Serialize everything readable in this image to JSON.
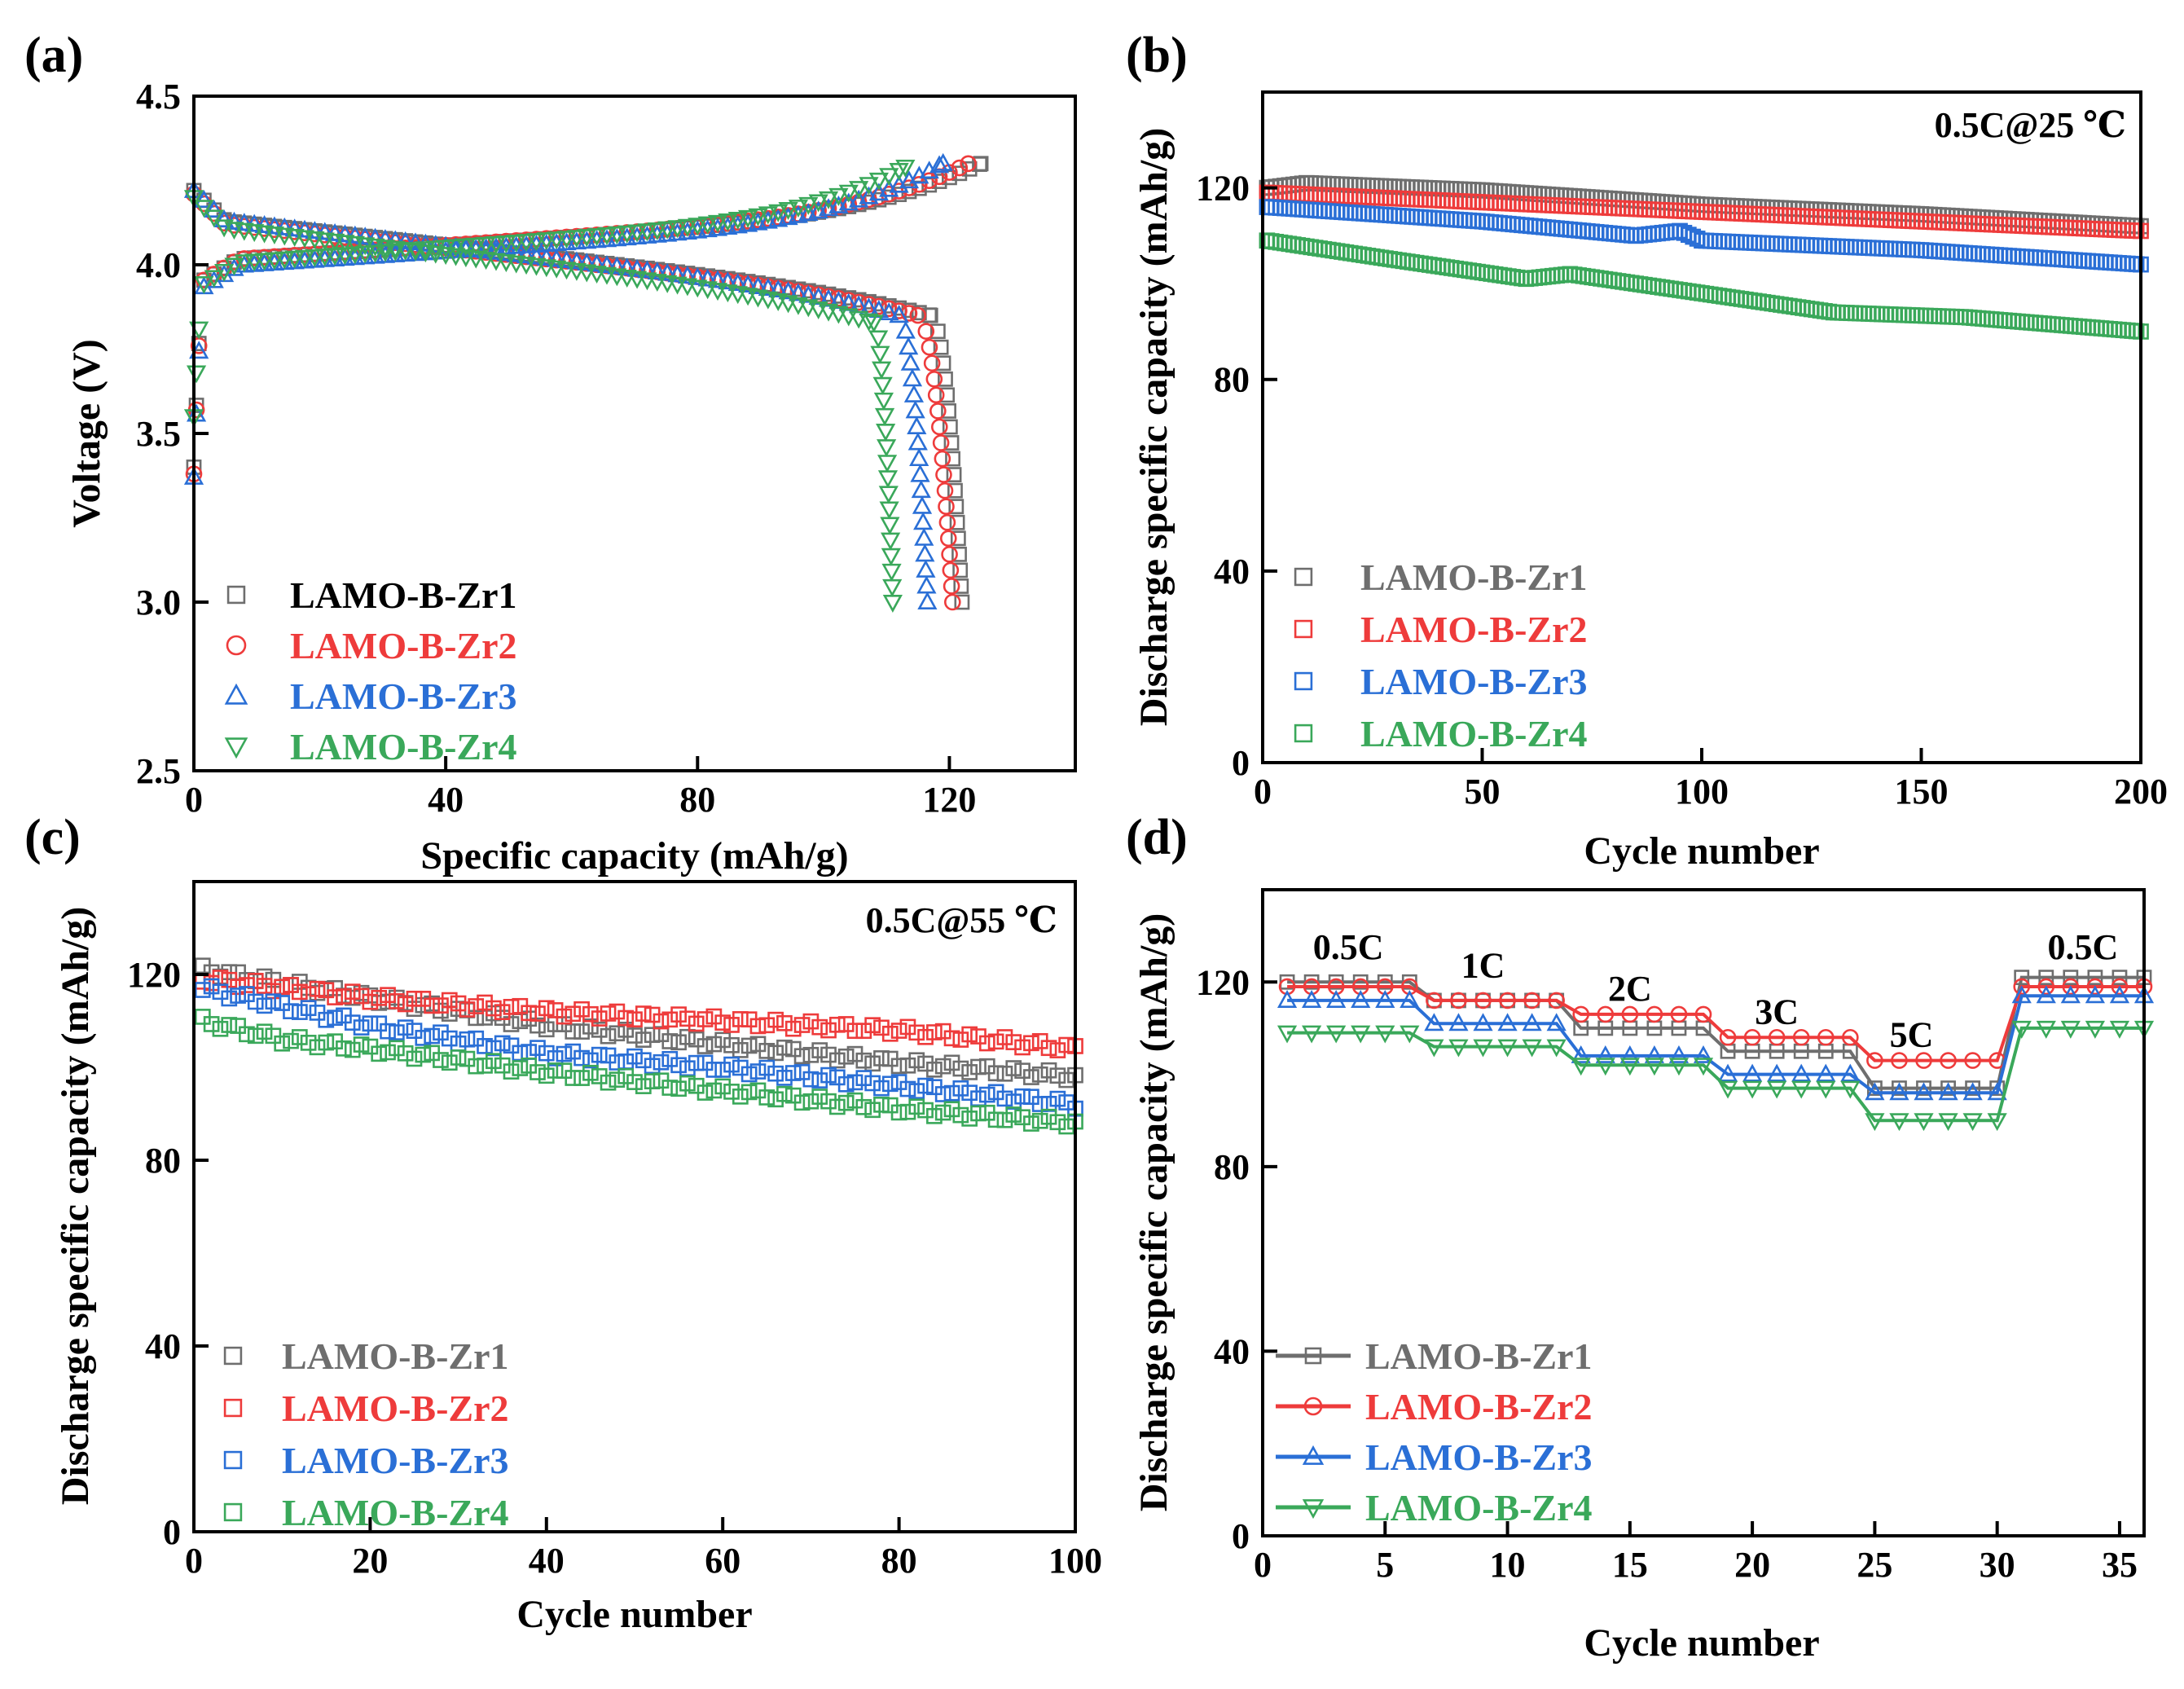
{
  "figure": {
    "colors": {
      "zr1": "#6e6e6e",
      "zr2": "#ee3b3b",
      "zr3": "#2a6fd6",
      "zr4": "#3aa85a",
      "legend_a_zr1": "#000000"
    }
  },
  "chart_data": [
    {
      "id": "a",
      "type": "scatter",
      "panel_label": "(a)",
      "title": "",
      "xlabel": "Specific capacity (mAh/g)",
      "ylabel": "Voltage (V)",
      "xlim": [
        0,
        140
      ],
      "ylim": [
        2.5,
        4.5
      ],
      "xticks": [
        0,
        40,
        80,
        120
      ],
      "yticks": [
        2.5,
        3.0,
        3.5,
        4.0,
        4.5
      ],
      "xtick_labels": [
        "0",
        "40",
        "80",
        "120"
      ],
      "ytick_labels": [
        "2.5",
        "3.0",
        "3.5",
        "4.0",
        "4.5"
      ],
      "legend_position": "bottom-left",
      "series": [
        {
          "name": "LAMO-B-Zr1",
          "marker": "square",
          "charge": {
            "start_v": 3.4,
            "kink_v": 3.95,
            "end_capacity": 125,
            "end_v": 4.3
          },
          "discharge": {
            "start_v": 4.22,
            "knee_capacity": 117,
            "knee_v": 3.85,
            "end_capacity": 122,
            "end_v": 3.0
          }
        },
        {
          "name": "LAMO-B-Zr2",
          "marker": "circle",
          "charge": {
            "start_v": 3.38,
            "kink_v": 3.95,
            "end_capacity": 123,
            "end_v": 4.3
          },
          "discharge": {
            "start_v": 4.21,
            "knee_capacity": 115,
            "knee_v": 3.85,
            "end_capacity": 120.5,
            "end_v": 3.0
          }
        },
        {
          "name": "LAMO-B-Zr3",
          "marker": "triangle-up",
          "charge": {
            "start_v": 3.37,
            "kink_v": 3.93,
            "end_capacity": 119,
            "end_v": 4.3
          },
          "discharge": {
            "start_v": 4.22,
            "knee_capacity": 112,
            "knee_v": 3.85,
            "end_capacity": 116.5,
            "end_v": 3.0
          }
        },
        {
          "name": "LAMO-B-Zr4",
          "marker": "triangle-down",
          "charge": {
            "start_v": 3.55,
            "kink_v": 3.94,
            "end_capacity": 113,
            "end_v": 4.29
          },
          "discharge": {
            "start_v": 4.2,
            "knee_capacity": 108,
            "knee_v": 3.83,
            "end_capacity": 111,
            "end_v": 3.0
          }
        }
      ]
    },
    {
      "id": "b",
      "type": "scatter",
      "panel_label": "(b)",
      "annotation": "0.5C@25 ℃",
      "xlabel": "Cycle number",
      "ylabel": "Discharge specific capacity (mAh/g)",
      "xlim": [
        0,
        200
      ],
      "ylim": [
        0,
        140
      ],
      "xticks": [
        0,
        50,
        100,
        150,
        200
      ],
      "yticks": [
        0,
        40,
        80,
        120
      ],
      "xtick_labels": [
        "0",
        "50",
        "100",
        "150",
        "200"
      ],
      "ytick_labels": [
        "0",
        "40",
        "80",
        "120"
      ],
      "legend_position": "bottom-left",
      "series": [
        {
          "name": "LAMO-B-Zr1",
          "marker": "square",
          "cycles": 200,
          "anchors": [
            [
              1,
              120
            ],
            [
              10,
              121
            ],
            [
              50,
              119.5
            ],
            [
              100,
              116.5
            ],
            [
              150,
              114.5
            ],
            [
              200,
              112
            ]
          ]
        },
        {
          "name": "LAMO-B-Zr2",
          "marker": "square",
          "cycles": 200,
          "anchors": [
            [
              1,
              119
            ],
            [
              50,
              117
            ],
            [
              100,
              115
            ],
            [
              150,
              113
            ],
            [
              200,
              111
            ]
          ]
        },
        {
          "name": "LAMO-B-Zr3",
          "marker": "square",
          "cycles": 200,
          "anchors": [
            [
              1,
              116
            ],
            [
              50,
              113
            ],
            [
              85,
              110
            ],
            [
              95,
              111
            ],
            [
              100,
              109
            ],
            [
              150,
              107
            ],
            [
              200,
              104
            ]
          ]
        },
        {
          "name": "LAMO-B-Zr4",
          "marker": "square",
          "cycles": 200,
          "anchors": [
            [
              1,
              109
            ],
            [
              30,
              105
            ],
            [
              60,
              101
            ],
            [
              70,
              102
            ],
            [
              100,
              98
            ],
            [
              130,
              94
            ],
            [
              160,
              93
            ],
            [
              200,
              90
            ]
          ]
        }
      ]
    },
    {
      "id": "c",
      "type": "scatter",
      "panel_label": "(c)",
      "annotation": "0.5C@55 ℃",
      "xlabel": "Cycle number",
      "ylabel": "Discharge specific capacity (mAh/g)",
      "xlim": [
        0,
        100
      ],
      "ylim": [
        0,
        140
      ],
      "xticks": [
        0,
        20,
        40,
        60,
        80,
        100
      ],
      "yticks": [
        0,
        40,
        80,
        120
      ],
      "xtick_labels": [
        "0",
        "20",
        "40",
        "60",
        "80",
        "100"
      ],
      "ytick_labels": [
        "0",
        "40",
        "80",
        "120"
      ],
      "legend_position": "bottom-left",
      "series": [
        {
          "name": "LAMO-B-Zr1",
          "marker": "square",
          "cycles": 100,
          "anchors": [
            [
              1,
              121
            ],
            [
              20,
              115
            ],
            [
              40,
              109
            ],
            [
              60,
              105
            ],
            [
              80,
              101
            ],
            [
              100,
              98
            ]
          ]
        },
        {
          "name": "LAMO-B-Zr2",
          "marker": "square",
          "cycles": 100,
          "anchors": [
            [
              1,
              119
            ],
            [
              20,
              115
            ],
            [
              40,
              112
            ],
            [
              60,
              110
            ],
            [
              80,
              108
            ],
            [
              100,
              104
            ]
          ]
        },
        {
          "name": "LAMO-B-Zr3",
          "marker": "square",
          "cycles": 100,
          "anchors": [
            [
              1,
              117
            ],
            [
              20,
              109
            ],
            [
              40,
              103
            ],
            [
              60,
              100
            ],
            [
              80,
              96
            ],
            [
              100,
              92
            ]
          ]
        },
        {
          "name": "LAMO-B-Zr4",
          "marker": "square",
          "cycles": 100,
          "anchors": [
            [
              1,
              110
            ],
            [
              10,
              106
            ],
            [
              20,
              104
            ],
            [
              40,
              99
            ],
            [
              60,
              95
            ],
            [
              80,
              91
            ],
            [
              100,
              88
            ]
          ]
        }
      ]
    },
    {
      "id": "d",
      "type": "line",
      "panel_label": "(d)",
      "xlabel": "Cycle number",
      "ylabel": "Discharge specific capacity (mAh/g)",
      "xlim": [
        0,
        36
      ],
      "ylim": [
        0,
        140
      ],
      "xticks": [
        0,
        5,
        10,
        15,
        20,
        25,
        30,
        35
      ],
      "yticks": [
        0,
        40,
        80,
        120
      ],
      "xtick_labels": [
        "0",
        "5",
        "10",
        "15",
        "20",
        "25",
        "30",
        "35"
      ],
      "ytick_labels": [
        "0",
        "40",
        "80",
        "120"
      ],
      "legend_position": "bottom-left",
      "rate_labels": [
        {
          "text": "0.5C",
          "x": 3.5,
          "y": 125
        },
        {
          "text": "1C",
          "x": 9,
          "y": 121
        },
        {
          "text": "2C",
          "x": 15,
          "y": 116
        },
        {
          "text": "3C",
          "x": 21,
          "y": 111
        },
        {
          "text": "5C",
          "x": 26.5,
          "y": 106
        },
        {
          "text": "0.5C",
          "x": 33.5,
          "y": 125
        }
      ],
      "steps": [
        [
          1,
          6
        ],
        [
          7,
          12
        ],
        [
          13,
          18
        ],
        [
          19,
          24
        ],
        [
          25,
          30
        ],
        [
          31,
          36
        ]
      ],
      "series": [
        {
          "name": "LAMO-B-Zr1",
          "marker": "square",
          "step_values": [
            120,
            116,
            110,
            105,
            97,
            121
          ]
        },
        {
          "name": "LAMO-B-Zr2",
          "marker": "circle",
          "step_values": [
            119,
            116,
            113,
            108,
            103,
            119
          ]
        },
        {
          "name": "LAMO-B-Zr3",
          "marker": "triangle-up",
          "step_values": [
            116,
            111,
            104,
            100,
            96,
            117
          ]
        },
        {
          "name": "LAMO-B-Zr4",
          "marker": "triangle-down",
          "step_values": [
            109,
            106,
            102,
            97,
            90,
            110
          ]
        }
      ]
    }
  ]
}
